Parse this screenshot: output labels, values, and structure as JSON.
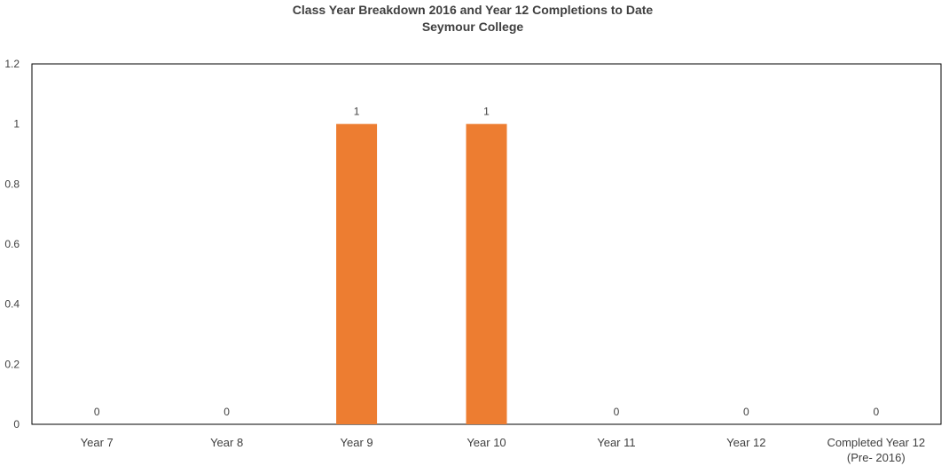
{
  "chart_data": {
    "type": "bar",
    "title": "Class Year Breakdown 2016 and Year 12 Completions to Date",
    "subtitle": "Seymour College",
    "categories": [
      "Year 7",
      "Year 8",
      "Year 9",
      "Year 10",
      "Year 11",
      "Year 12",
      "Completed Year 12 (Pre- 2016)"
    ],
    "category_lines": [
      [
        "Year 7"
      ],
      [
        "Year 8"
      ],
      [
        "Year 9"
      ],
      [
        "Year 10"
      ],
      [
        "Year 11"
      ],
      [
        "Year 12"
      ],
      [
        "Completed Year 12",
        "(Pre- 2016)"
      ]
    ],
    "values": [
      0,
      0,
      1,
      1,
      0,
      0,
      0
    ],
    "data_labels": [
      "0",
      "0",
      "1",
      "1",
      "0",
      "0",
      "0"
    ],
    "ylim": [
      0,
      1.2
    ],
    "yticks": [
      "0",
      "0.2",
      "0.4",
      "0.6",
      "0.8",
      "1",
      "1.2"
    ],
    "xlabel": "",
    "ylabel": "",
    "grid": false,
    "legend": "none",
    "colors": {
      "bar": "#ED7D31",
      "text": "#404040",
      "axis": "#000000"
    }
  }
}
